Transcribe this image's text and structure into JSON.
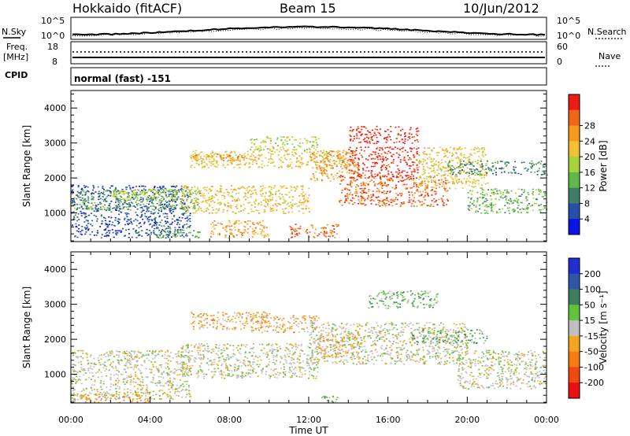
{
  "header": {
    "station": "Hokkaido (fitACF)",
    "beam": "Beam 15",
    "date": "10/Jun/2012"
  },
  "top_panels": {
    "nsky_label": "N.Sky",
    "nsky_ticks": [
      "10^5",
      "10^0"
    ],
    "nsearch_label": "N.Search",
    "nsearch_ticks": [
      "10^5",
      "10^0"
    ],
    "freq_label_line1": "Freq.",
    "freq_label_line2": "[MHz]",
    "freq_ticks": [
      "18",
      "8"
    ],
    "nave_label": "Nave",
    "nave_ticks": [
      "60",
      "0"
    ],
    "cpid_label": "CPID",
    "cpid_value": "normal (fast) -151"
  },
  "chart_data": [
    {
      "type": "heatmap",
      "name": "power-panel",
      "xlabel": "",
      "ylabel": "Slant Range [km]",
      "xlim": [
        0,
        24
      ],
      "ylim": [
        180,
        4500
      ],
      "yticks": [
        "1000",
        "2000",
        "3000",
        "4000"
      ],
      "colorbar": {
        "label": "Power [dB]",
        "ticks": [
          "4",
          "8",
          "12",
          "16",
          "20",
          "24",
          "28"
        ],
        "colors": [
          "#0a14e6",
          "#284fa8",
          "#3f7f6a",
          "#5fb84a",
          "#a6d53a",
          "#f0c232",
          "#f59a1c",
          "#f2661a",
          "#ee1c14"
        ]
      },
      "echo_regions": [
        {
          "t0": 0.0,
          "t1": 6.0,
          "r0": 300,
          "r1": 1800,
          "level": 1
        },
        {
          "t0": 0.0,
          "t1": 6.5,
          "r0": 1100,
          "r1": 1700,
          "level": 3
        },
        {
          "t0": 2.0,
          "t1": 5.5,
          "r0": 1400,
          "r1": 1700,
          "level": 4
        },
        {
          "t0": 5.5,
          "t1": 12.0,
          "r0": 1000,
          "r1": 1800,
          "level": 5
        },
        {
          "t0": 6.0,
          "t1": 14.0,
          "r0": 2300,
          "r1": 2800,
          "level": 5
        },
        {
          "t0": 6.0,
          "t1": 9.5,
          "r0": 2500,
          "r1": 2700,
          "level": 6
        },
        {
          "t0": 9.0,
          "t1": 12.5,
          "r0": 2800,
          "r1": 3200,
          "level": 4
        },
        {
          "t0": 12.0,
          "t1": 14.5,
          "r0": 1900,
          "r1": 2800,
          "level": 6
        },
        {
          "t0": 13.5,
          "t1": 19.0,
          "r0": 1200,
          "r1": 2100,
          "level": 7
        },
        {
          "t0": 14.0,
          "t1": 17.5,
          "r0": 2000,
          "r1": 2900,
          "level": 8
        },
        {
          "t0": 14.0,
          "t1": 17.5,
          "r0": 3000,
          "r1": 3500,
          "level": 8
        },
        {
          "t0": 17.5,
          "t1": 21.0,
          "r0": 1700,
          "r1": 2900,
          "level": 5
        },
        {
          "t0": 20.0,
          "t1": 24.0,
          "r0": 1000,
          "r1": 1700,
          "level": 3
        },
        {
          "t0": 19.0,
          "t1": 24.0,
          "r0": 2100,
          "r1": 2500,
          "level": 2
        },
        {
          "t0": 7.0,
          "t1": 10.0,
          "r0": 300,
          "r1": 800,
          "level": 6
        },
        {
          "t0": 11.0,
          "t1": 13.5,
          "r0": 300,
          "r1": 700,
          "level": 7
        },
        {
          "t0": 4.0,
          "t1": 6.5,
          "r0": 300,
          "r1": 600,
          "level": 3
        }
      ]
    },
    {
      "type": "heatmap",
      "name": "velocity-panel",
      "xlabel": "Time UT",
      "ylabel": "Slant Range [km]",
      "xlim": [
        0,
        24
      ],
      "ylim": [
        180,
        4500
      ],
      "xticks": [
        "00:00",
        "04:00",
        "08:00",
        "12:00",
        "16:00",
        "20:00",
        "00:00"
      ],
      "yticks": [
        "1000",
        "2000",
        "3000",
        "4000"
      ],
      "colorbar": {
        "label": "Velocity [m s⁻¹]",
        "ticks": [
          "200",
          "100",
          "50",
          "15",
          "-15",
          "-50",
          "-100",
          "-200"
        ],
        "colors": [
          "#1f2fd4",
          "#2f56a8",
          "#3e7e60",
          "#62c23c",
          "#bfbfbf",
          "#f4a51e",
          "#f57c12",
          "#f0480e",
          "#ec1010"
        ]
      },
      "echo_regions": [
        {
          "t0": 0.0,
          "t1": 6.0,
          "r0": 300,
          "r1": 1700,
          "level": 4
        },
        {
          "t0": 5.5,
          "t1": 12.5,
          "r0": 900,
          "r1": 1900,
          "level": 4
        },
        {
          "t0": 6.0,
          "t1": 10.0,
          "r0": 2300,
          "r1": 2800,
          "level": 5
        },
        {
          "t0": 9.0,
          "t1": 12.5,
          "r0": 2200,
          "r1": 2700,
          "level": 5
        },
        {
          "t0": 12.0,
          "t1": 20.0,
          "r0": 1300,
          "r1": 2500,
          "level": 4
        },
        {
          "t0": 15.0,
          "t1": 18.5,
          "r0": 2900,
          "r1": 3400,
          "level": 3
        },
        {
          "t0": 17.0,
          "t1": 21.0,
          "r0": 1900,
          "r1": 2300,
          "level": 3
        },
        {
          "t0": 19.5,
          "t1": 24.0,
          "r0": 600,
          "r1": 1700,
          "level": 4
        },
        {
          "t0": 0.0,
          "t1": 4.0,
          "r0": 200,
          "r1": 500,
          "level": 5
        },
        {
          "t0": 12.5,
          "t1": 13.5,
          "r0": 200,
          "r1": 400,
          "level": 3
        },
        {
          "t0": 12.5,
          "t1": 14.5,
          "r0": 1500,
          "r1": 2200,
          "level": 5
        }
      ]
    }
  ]
}
